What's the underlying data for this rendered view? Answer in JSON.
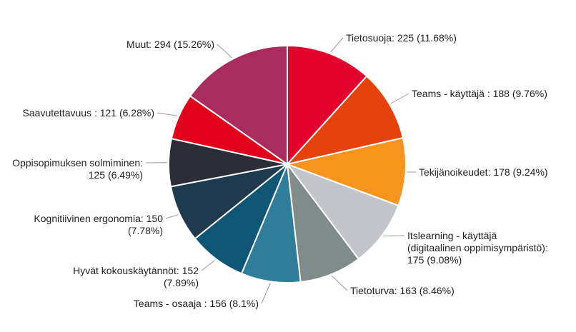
{
  "chart_data": {
    "type": "pie",
    "title": "",
    "legend": "none",
    "slices": [
      {
        "category": "Tietosuoja",
        "value": 225,
        "label_lines": [
          "Tietosuoja: 225 (11.68%)"
        ],
        "color": "#e3022c"
      },
      {
        "category": "Teams - käyttäjä",
        "value": 188,
        "label_lines": [
          "Teams - käyttäjä : 188 (9.76%)"
        ],
        "color": "#e5420b"
      },
      {
        "category": "Tekijänoikeudet",
        "value": 178,
        "label_lines": [
          "Tekijänoikeudet: 178 (9.24%)"
        ],
        "color": "#f7941d"
      },
      {
        "category": "Itslearning - käyttäjä (digitaalinen oppimisympäristö)",
        "value": 175,
        "label_lines": [
          "Itslearning - käyttäjä",
          "(digitaalinen oppimisympäristö):",
          "175 (9.08%)"
        ],
        "color": "#c2c6ca"
      },
      {
        "category": "Tietoturva",
        "value": 163,
        "label_lines": [
          "Tietoturva: 163 (8.46%)"
        ],
        "color": "#7f8c8a"
      },
      {
        "category": "Teams - osaaja",
        "value": 156,
        "label_lines": [
          "Teams - osaaja : 156 (8.1%)"
        ],
        "color": "#2f7d9a"
      },
      {
        "category": "Hyvät kokouskäytännöt",
        "value": 152,
        "label_lines": [
          "Hyvät kokouskäytännöt: 152",
          "(7.89%)"
        ],
        "color": "#0f5575"
      },
      {
        "category": "Kognitiivinen ergonomia",
        "value": 150,
        "label_lines": [
          "Kognitiivinen ergonomia: 150",
          "(7.78%)"
        ],
        "color": "#1f3a4f"
      },
      {
        "category": "Oppisopimuksen solmiminen",
        "value": 125,
        "label_lines": [
          "Oppisopimuksen solmiminen:",
          "125 (6.49%)"
        ],
        "color": "#2c2c36"
      },
      {
        "category": "Saavutettavuus",
        "value": 121,
        "label_lines": [
          "Saavutettavuus : 121 (6.28%)"
        ],
        "color": "#e3021c"
      },
      {
        "category": "Muut",
        "value": 294,
        "label_lines": [
          "Muut: 294 (15.26%)"
        ],
        "color": "#a82c5e"
      }
    ]
  }
}
